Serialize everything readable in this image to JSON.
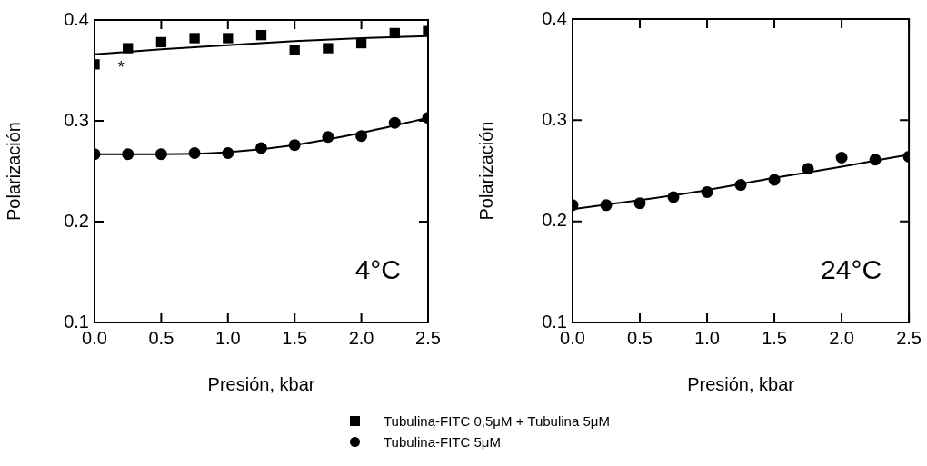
{
  "chart_data": [
    {
      "type": "scatter",
      "xlabel": "Presión, kbar",
      "ylabel": "Polarización",
      "xlim": [
        0,
        2.5
      ],
      "xticks": [
        {
          "value": 0,
          "label": "0.0"
        },
        0.5,
        {
          "value": 1,
          "label": "1.0"
        },
        1.5,
        {
          "value": 2,
          "label": "2.0"
        },
        2.5
      ],
      "ylim": [
        0.1,
        0.4
      ],
      "yticks": [
        0.1,
        0.2,
        0.3,
        0.4
      ],
      "grid": false,
      "legend": "bottom",
      "x": [
        0,
        0.25,
        0.5,
        0.75,
        1.0,
        1.25,
        1.5,
        1.75,
        2.0,
        2.25,
        2.5
      ],
      "series": [
        {
          "name": "Tubulina-FITC 0,5μM + Tubulina 5μM",
          "color": "#000000",
          "marker": "square",
          "values": [
            0.356,
            0.372,
            0.378,
            0.382,
            0.382,
            0.385,
            0.37,
            0.372,
            0.377,
            0.387,
            0.389
          ]
        },
        {
          "name": "Tubulina-FITC 5μM",
          "color": "#000000",
          "marker": "circle",
          "values": [
            0.267,
            0.267,
            0.267,
            0.268,
            0.268,
            0.273,
            0.276,
            0.284,
            0.285,
            0.298,
            0.303
          ]
        },
        {
          "type": "line",
          "color": "#000000",
          "marker": "none",
          "line_style": "solid",
          "x": [
            0,
            0.5,
            1.0,
            1.5,
            2.0,
            2.5
          ],
          "values": [
            0.366,
            0.371,
            0.375,
            0.379,
            0.382,
            0.384
          ]
        },
        {
          "type": "line",
          "color": "#000000",
          "marker": "none",
          "line_style": "solid",
          "x": [
            0,
            0.5,
            1.0,
            1.5,
            2.0,
            2.5
          ],
          "values": [
            0.267,
            0.267,
            0.269,
            0.276,
            0.288,
            0.303
          ]
        }
      ],
      "annotations": [
        "*",
        "4°C"
      ]
    },
    {
      "type": "scatter",
      "xlabel": "Presión, kbar",
      "ylabel": "Polarización",
      "xlim": [
        0,
        2.5
      ],
      "xticks": [
        {
          "value": 0,
          "label": "0.0"
        },
        0.5,
        {
          "value": 1,
          "label": "1.0"
        },
        1.5,
        {
          "value": 2,
          "label": "2.0"
        },
        2.5
      ],
      "ylim": [
        0.1,
        0.4
      ],
      "yticks": [
        0.1,
        0.2,
        0.3,
        0.4
      ],
      "grid": false,
      "x": [
        0,
        0.25,
        0.5,
        0.75,
        1.0,
        1.25,
        1.5,
        1.75,
        2.0,
        2.25,
        2.5
      ],
      "series": [
        {
          "color": "#000000",
          "marker": "circle",
          "values": [
            0.216,
            0.216,
            0.218,
            0.224,
            0.229,
            0.236,
            0.241,
            0.252,
            0.263,
            0.261,
            0.264
          ]
        },
        {
          "type": "line",
          "color": "#000000",
          "marker": "none",
          "line_style": "solid",
          "x": [
            0,
            0.5,
            1.0,
            1.5,
            2.0,
            2.5
          ],
          "values": [
            0.212,
            0.221,
            0.231,
            0.243,
            0.254,
            0.266
          ]
        }
      ],
      "annotations": [
        "24°C"
      ]
    }
  ]
}
